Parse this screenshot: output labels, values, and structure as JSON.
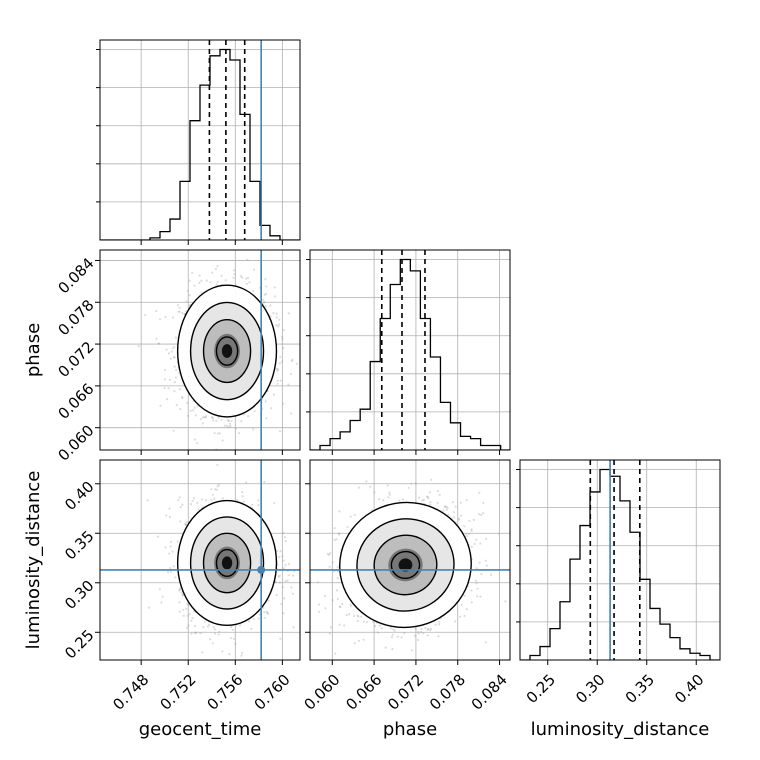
{
  "chart_data": {
    "type": "corner",
    "parameters": [
      "geocent_time",
      "phase",
      "luminosity_distance"
    ],
    "truths": {
      "geocent_time": 0.7582,
      "phase": null,
      "luminosity_distance": 0.313
    },
    "axes_ranges": {
      "geocent_time": [
        0.7445,
        0.7615
      ],
      "phase": [
        0.0568,
        0.0855
      ],
      "luminosity_distance": [
        0.222,
        0.424
      ]
    },
    "ticks": {
      "geocent_time": [
        "0.748",
        "0.752",
        "0.756",
        "0.760"
      ],
      "phase": [
        "0.060",
        "0.066",
        "0.072",
        "0.078",
        "0.084"
      ],
      "luminosity_distance": [
        "0.25",
        "0.30",
        "0.35",
        "0.40"
      ]
    },
    "tick_values": {
      "geocent_time": [
        0.748,
        0.752,
        0.756,
        0.76
      ],
      "phase": [
        0.06,
        0.066,
        0.072,
        0.078,
        0.084
      ],
      "luminosity_distance": [
        0.25,
        0.3,
        0.35,
        0.4
      ]
    },
    "grid": true,
    "colors": {
      "truth": "#4682b4",
      "hist": "#000000",
      "points": "#9a9a9a"
    },
    "histograms": {
      "geocent_time": {
        "edges": [
          0.7445,
          0.74535,
          0.7462,
          0.74705,
          0.7479,
          0.74875,
          0.7496,
          0.75045,
          0.7513,
          0.75215,
          0.753,
          0.75385,
          0.7547,
          0.75555,
          0.7564,
          0.75725,
          0.7581,
          0.75895,
          0.7598,
          0.76065,
          0.7615
        ],
        "counts": [
          0,
          0,
          0,
          0,
          0,
          1,
          4,
          10,
          28,
          57,
          74,
          88,
          91,
          86,
          60,
          28,
          7,
          2,
          0,
          0
        ],
        "quantiles": [
          0.7538,
          0.7552,
          0.7568
        ]
      },
      "phase": {
        "edges": [
          0.0568,
          0.05824,
          0.05968,
          0.06112,
          0.06256,
          0.064,
          0.06544,
          0.06688,
          0.06832,
          0.06976,
          0.0712,
          0.07264,
          0.07408,
          0.07552,
          0.07696,
          0.0784,
          0.07984,
          0.08128,
          0.08272,
          0.08416,
          0.0856
        ],
        "counts": [
          0,
          2,
          5,
          8,
          13,
          18,
          39,
          58,
          73,
          84,
          79,
          58,
          41,
          21,
          12,
          6,
          5,
          2,
          2,
          0
        ],
        "quantiles": [
          0.0671,
          0.07,
          0.0733
        ]
      },
      "luminosity_distance": {
        "edges": [
          0.222,
          0.2321,
          0.2422,
          0.2523,
          0.2624,
          0.2725,
          0.2826,
          0.2927,
          0.3028,
          0.3129,
          0.323,
          0.3331,
          0.3432,
          0.3533,
          0.3634,
          0.3735,
          0.3836,
          0.3937,
          0.4038,
          0.4139,
          0.424
        ],
        "counts": [
          0,
          2,
          6,
          14,
          26,
          45,
          60,
          75,
          85,
          82,
          71,
          57,
          36,
          23,
          16,
          10,
          5,
          3,
          2,
          0
        ],
        "quantiles": [
          0.293,
          0.317,
          0.343
        ]
      }
    },
    "bivariate": [
      {
        "x": "geocent_time",
        "y": "phase",
        "center": [
          0.7553,
          0.071
        ],
        "sd": [
          0.002,
          0.0045
        ],
        "rho": 0.0
      },
      {
        "x": "geocent_time",
        "y": "luminosity_distance",
        "center": [
          0.7553,
          0.32
        ],
        "sd": [
          0.002,
          0.03
        ],
        "rho": 0.0
      },
      {
        "x": "phase",
        "y": "luminosity_distance",
        "center": [
          0.0705,
          0.318
        ],
        "sd": [
          0.0045,
          0.03
        ],
        "rho": 0.15
      }
    ]
  }
}
